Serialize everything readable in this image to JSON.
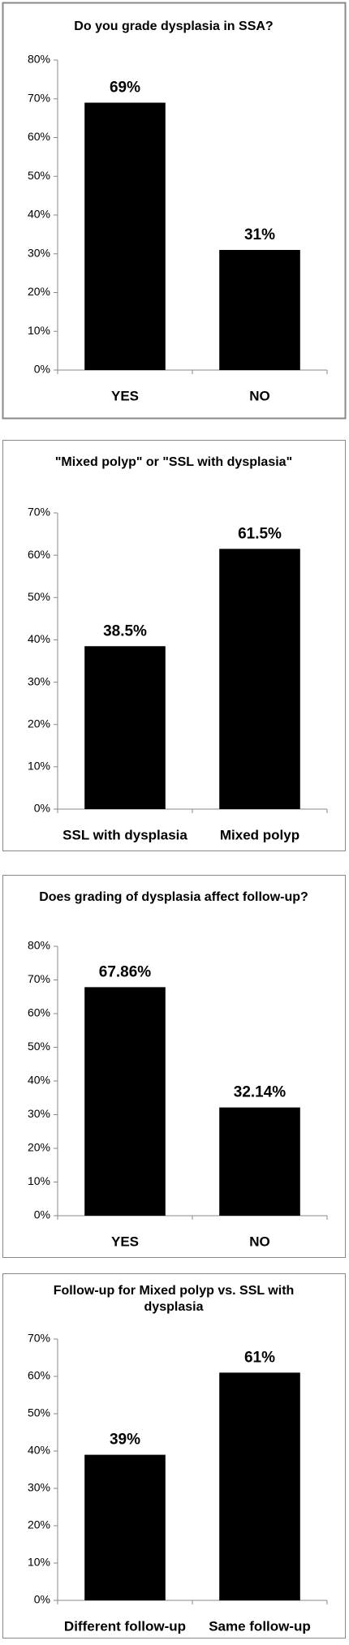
{
  "chart_data": [
    {
      "type": "bar",
      "title": "Do you grade dysplasia in SSA?",
      "categories": [
        "YES",
        "NO"
      ],
      "values": [
        69,
        31
      ],
      "value_labels": [
        "69%",
        "31%"
      ],
      "color": "#000000",
      "ylim": [
        0,
        80
      ],
      "yticks": [
        {
          "value": 0,
          "label": "0%"
        },
        {
          "value": 10,
          "label": "10%"
        },
        {
          "value": 20,
          "label": "20%"
        },
        {
          "value": 30,
          "label": "30%"
        },
        {
          "value": 40,
          "label": "40%"
        },
        {
          "value": 50,
          "label": "50%"
        },
        {
          "value": 60,
          "label": "60%"
        },
        {
          "value": 70,
          "label": "70%"
        },
        {
          "value": 80,
          "label": "80%"
        }
      ],
      "grid": false
    },
    {
      "type": "bar",
      "title": "\"Mixed polyp\" or \"SSL with dysplasia\"",
      "categories": [
        "SSL with dysplasia",
        "Mixed polyp"
      ],
      "values": [
        38.5,
        61.5
      ],
      "value_labels": [
        "38.5%",
        "61.5%"
      ],
      "color": "#000000",
      "ylim": [
        0,
        70
      ],
      "yticks": [
        {
          "value": 0,
          "label": "0%"
        },
        {
          "value": 10,
          "label": "10%"
        },
        {
          "value": 20,
          "label": "20%"
        },
        {
          "value": 30,
          "label": "30%"
        },
        {
          "value": 40,
          "label": "40%"
        },
        {
          "value": 50,
          "label": "50%"
        },
        {
          "value": 60,
          "label": "60%"
        },
        {
          "value": 70,
          "label": "70%"
        }
      ],
      "grid": false
    },
    {
      "type": "bar",
      "title": "Does grading of dysplasia  affect follow-up?",
      "categories": [
        "YES",
        "NO"
      ],
      "values": [
        67.86,
        32.14
      ],
      "value_labels": [
        "67.86%",
        "32.14%"
      ],
      "color": "#000000",
      "ylim": [
        0,
        80
      ],
      "yticks": [
        {
          "value": 0,
          "label": "0%"
        },
        {
          "value": 10,
          "label": "10%"
        },
        {
          "value": 20,
          "label": "20%"
        },
        {
          "value": 30,
          "label": "30%"
        },
        {
          "value": 40,
          "label": "40%"
        },
        {
          "value": 50,
          "label": "50%"
        },
        {
          "value": 60,
          "label": "60%"
        },
        {
          "value": 70,
          "label": "70%"
        },
        {
          "value": 80,
          "label": "80%"
        }
      ],
      "grid": false
    },
    {
      "type": "bar",
      "title": "Follow-up for Mixed polyp vs. SSL with dysplasia",
      "categories": [
        "Different follow-up",
        "Same follow-up"
      ],
      "values": [
        39,
        61
      ],
      "value_labels": [
        "39%",
        "61%"
      ],
      "color": "#000000",
      "ylim": [
        0,
        70
      ],
      "yticks": [
        {
          "value": 0,
          "label": "0%"
        },
        {
          "value": 10,
          "label": "10%"
        },
        {
          "value": 20,
          "label": "20%"
        },
        {
          "value": 30,
          "label": "30%"
        },
        {
          "value": 40,
          "label": "40%"
        },
        {
          "value": 50,
          "label": "50%"
        },
        {
          "value": 60,
          "label": "60%"
        },
        {
          "value": 70,
          "label": "70%"
        }
      ],
      "grid": false
    }
  ]
}
